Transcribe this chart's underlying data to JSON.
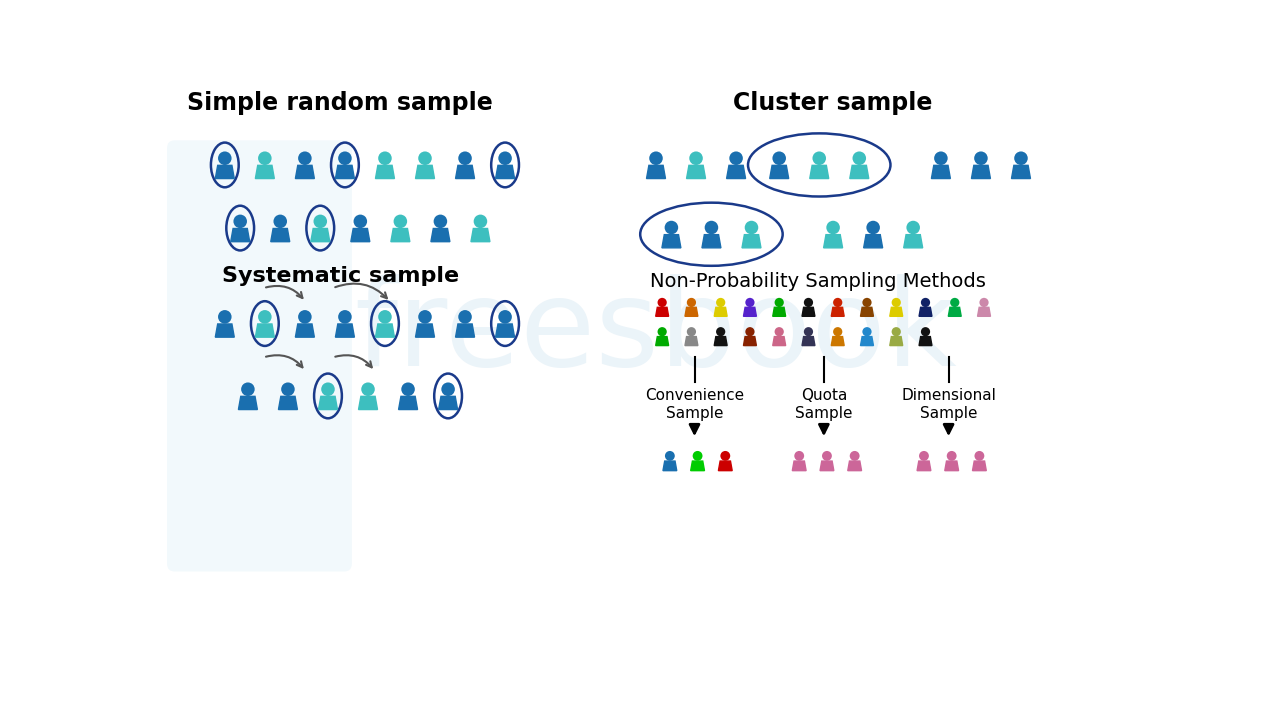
{
  "title_left": "Simple random sample",
  "title_right": "Cluster sample",
  "subtitle_nonprob": "Non-Probability Sampling Methods",
  "labels_bottom": [
    "Convenience\nSample",
    "Quota\nSample",
    "Dimensional\nSample"
  ],
  "blue_dark": "#1a6faf",
  "teal": "#3dbfbf",
  "bg_color": "#ffffff",
  "nonprob_r1": [
    "#cc0000",
    "#cc6600",
    "#ddcc00",
    "#5522cc",
    "#00aa00",
    "#111111",
    "#cc2200",
    "#884400",
    "#ddcc00",
    "#112266",
    "#00aa44",
    "#cc88aa"
  ],
  "nonprob_r2": [
    "#00aa00",
    "#888888",
    "#111111",
    "#882200",
    "#cc6688",
    "#333355",
    "#cc7700",
    "#2288cc",
    "#99aa44",
    "#111111"
  ],
  "conv_colors": [
    "#1a6faf",
    "#00cc00",
    "#cc0000"
  ],
  "quota_colors": [
    "#cc6699",
    "#cc6699",
    "#cc6699"
  ],
  "dim_colors": [
    "#cc6699",
    "#cc6699",
    "#cc6699"
  ]
}
